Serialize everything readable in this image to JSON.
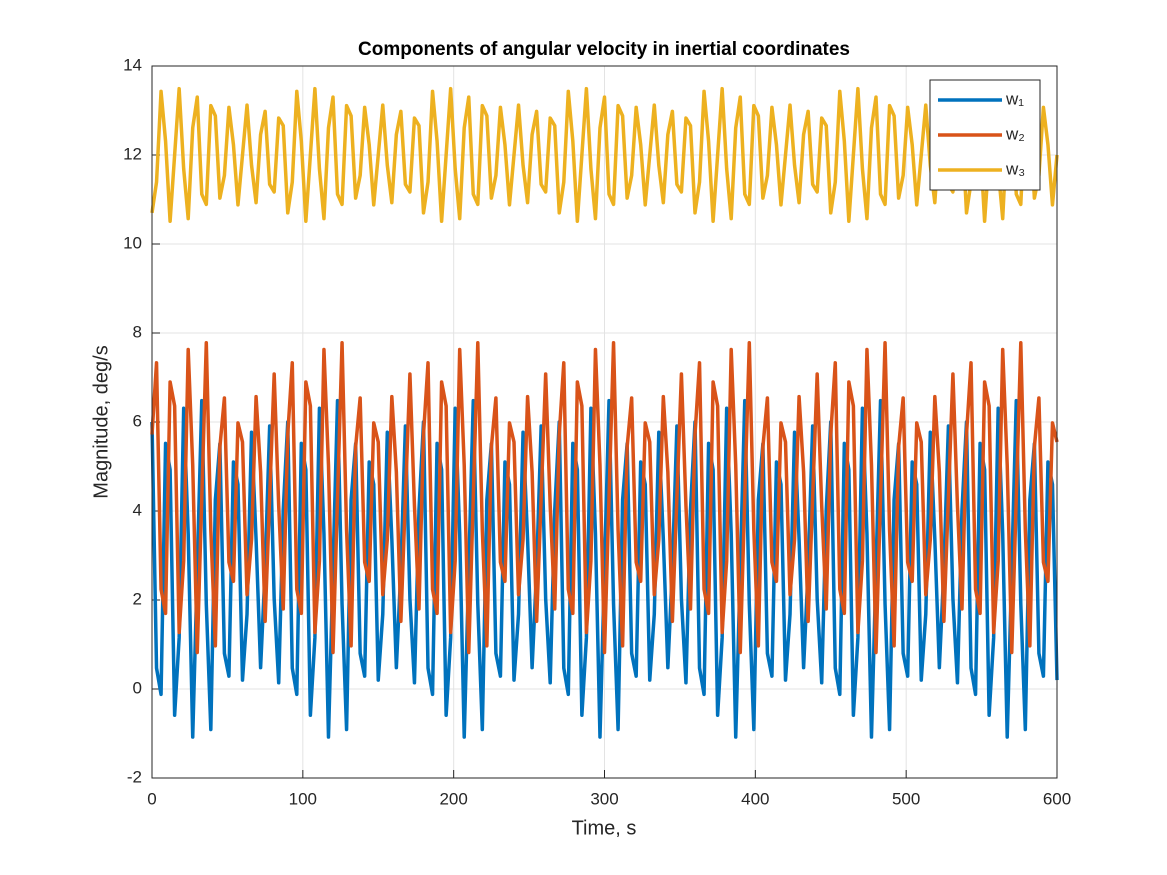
{
  "chart_data": {
    "type": "line",
    "title": "Components of angular velocity in inertial coordinates",
    "x_label": "Time, s",
    "y_label": "Magnitude, deg/s",
    "xlim": [
      0,
      600
    ],
    "xticks": [
      0,
      100,
      200,
      300,
      400,
      500,
      600
    ],
    "ylim": [
      -2,
      14
    ],
    "yticks": [
      -2,
      0,
      2,
      4,
      6,
      8,
      10,
      12,
      14
    ],
    "grid": true,
    "legend": "top-right",
    "x": [
      0,
      3,
      6,
      9,
      12,
      15,
      18,
      21,
      24,
      27,
      30,
      33,
      36,
      39,
      42,
      45,
      48,
      51,
      54,
      57,
      60,
      63,
      66,
      69,
      72,
      75,
      78,
      81,
      84,
      87,
      90,
      93,
      96,
      99,
      102,
      105,
      108,
      111,
      114,
      117,
      120,
      123,
      126,
      129,
      132,
      135,
      138,
      141,
      144,
      147,
      150,
      153,
      156,
      159,
      162,
      165,
      168,
      171,
      174,
      177,
      180,
      183,
      186,
      189,
      192,
      195,
      198,
      201,
      204,
      207,
      210,
      213,
      216,
      219,
      222,
      225,
      228,
      231,
      234,
      237,
      240,
      243,
      246,
      249,
      252,
      255,
      258,
      261,
      264,
      267,
      270,
      273,
      276,
      279,
      282,
      285,
      288,
      291,
      294,
      297,
      300,
      303,
      306,
      309,
      312,
      315,
      318,
      321,
      324,
      327,
      330,
      333,
      336,
      339,
      342,
      345,
      348,
      351,
      354,
      357,
      360,
      363,
      366,
      369,
      372,
      375,
      378,
      381,
      384,
      387,
      390,
      393,
      396,
      399,
      402,
      405,
      408,
      411,
      414,
      417,
      420,
      423,
      426,
      429,
      432,
      435,
      438,
      441,
      444,
      447,
      450,
      453,
      456,
      459,
      462,
      465,
      468,
      471,
      474,
      477,
      480,
      483,
      486,
      489,
      492,
      495,
      498,
      501,
      504,
      507,
      510,
      513,
      516,
      519,
      522,
      525,
      528,
      531,
      534,
      537,
      540,
      543,
      546,
      549,
      552,
      555,
      558,
      561,
      564,
      567,
      570,
      573,
      576,
      579,
      582,
      585,
      588,
      591,
      594,
      597,
      600
    ],
    "series": [
      {
        "name": "w₁",
        "color": "#0072BD",
        "values": [
          6,
          0.47,
          -0.12,
          5.52,
          4.93,
          -0.59,
          1.15,
          6.31,
          3.49,
          -1.08,
          2.7,
          6.48,
          1.91,
          -0.91,
          4.25,
          5.51,
          0.8,
          0.29,
          5.1,
          4.6,
          0.2,
          1.68,
          5.77,
          3.37,
          0.48,
          2.7,
          5.91,
          2.03,
          0.14,
          4.02,
          6,
          0.47,
          -0.12,
          5.52,
          4.93,
          -0.59,
          1.15,
          6.31,
          3.49,
          -1.08,
          2.7,
          6.48,
          1.91,
          -0.91,
          4.25,
          5.51,
          0.8,
          0.29,
          5.1,
          4.6,
          0.2,
          1.68,
          5.77,
          3.37,
          0.48,
          2.7,
          5.91,
          2.03,
          0.14,
          4.02,
          6,
          0.47,
          -0.12,
          5.52,
          4.93,
          -0.59,
          1.15,
          6.31,
          3.49,
          -1.08,
          2.7,
          6.48,
          1.91,
          -0.91,
          4.25,
          5.51,
          0.8,
          0.29,
          5.1,
          4.6,
          0.2,
          1.68,
          5.77,
          3.37,
          0.48,
          2.7,
          5.91,
          2.03,
          0.14,
          4.02,
          6,
          0.47,
          -0.12,
          5.52,
          4.93,
          -0.59,
          1.15,
          6.31,
          3.49,
          -1.08,
          2.7,
          6.48,
          1.91,
          -0.91,
          4.25,
          5.51,
          0.8,
          0.29,
          5.1,
          4.6,
          0.2,
          1.68,
          5.77,
          3.37,
          0.48,
          2.7,
          5.91,
          2.03,
          0.14,
          4.02,
          6,
          0.47,
          -0.12,
          5.52,
          4.93,
          -0.59,
          1.15,
          6.31,
          3.49,
          -1.08,
          2.7,
          6.48,
          1.91,
          -0.91,
          4.25,
          5.51,
          0.8,
          0.29,
          5.1,
          4.6,
          0.2,
          1.68,
          5.77,
          3.37,
          0.48,
          2.7,
          5.91,
          2.03,
          0.14,
          4.02,
          6,
          0.47,
          -0.12,
          5.52,
          4.93,
          -0.59,
          1.15,
          6.31,
          3.49,
          -1.08,
          2.7,
          6.48,
          1.91,
          -0.91,
          4.25,
          5.51,
          0.8,
          0.29,
          5.1,
          4.6,
          0.2,
          1.68,
          5.77,
          3.37,
          0.48,
          2.7,
          5.91,
          2.03,
          0.14,
          4.02,
          6,
          0.47,
          -0.12,
          5.52,
          4.93,
          -0.59,
          1.15,
          6.31,
          3.49,
          -1.08,
          2.7,
          6.48,
          1.91,
          -0.91,
          4.25,
          5.51,
          0.8,
          0.29,
          5.1,
          4.6,
          0.2
        ]
      },
      {
        "name": "w₂",
        "color": "#D95319",
        "values": [
          5.72,
          7.33,
          2.24,
          1.7,
          6.9,
          6.36,
          1.27,
          2.88,
          7.63,
          5.03,
          0.82,
          4.3,
          7.78,
          3.57,
          0.97,
          5.44,
          6.54,
          2.85,
          2.42,
          5.98,
          5.55,
          2.12,
          3.36,
          6.57,
          4.88,
          1.52,
          4.3,
          7.08,
          4.12,
          1.8,
          5.72,
          7.33,
          2.24,
          1.7,
          6.9,
          6.36,
          1.27,
          2.88,
          7.63,
          5.03,
          0.82,
          4.3,
          7.78,
          3.57,
          0.97,
          5.44,
          6.54,
          2.85,
          2.42,
          5.98,
          5.55,
          2.12,
          3.36,
          6.57,
          4.88,
          1.52,
          4.3,
          7.08,
          4.12,
          1.8,
          5.72,
          7.33,
          2.24,
          1.7,
          6.9,
          6.36,
          1.27,
          2.88,
          7.63,
          5.03,
          0.82,
          4.3,
          7.78,
          3.57,
          0.97,
          5.44,
          6.54,
          2.85,
          2.42,
          5.98,
          5.55,
          2.12,
          3.36,
          6.57,
          4.88,
          1.52,
          4.3,
          7.08,
          4.12,
          1.8,
          5.72,
          7.33,
          2.24,
          1.7,
          6.9,
          6.36,
          1.27,
          2.88,
          7.63,
          5.03,
          0.82,
          4.3,
          7.78,
          3.57,
          0.97,
          5.44,
          6.54,
          2.85,
          2.42,
          5.98,
          5.55,
          2.12,
          3.36,
          6.57,
          4.88,
          1.52,
          4.3,
          7.08,
          4.12,
          1.8,
          5.72,
          7.33,
          2.24,
          1.7,
          6.9,
          6.36,
          1.27,
          2.88,
          7.63,
          5.03,
          0.82,
          4.3,
          7.78,
          3.57,
          0.97,
          5.44,
          6.54,
          2.85,
          2.42,
          5.98,
          5.55,
          2.12,
          3.36,
          6.57,
          4.88,
          1.52,
          4.3,
          7.08,
          4.12,
          1.8,
          5.72,
          7.33,
          2.24,
          1.7,
          6.9,
          6.36,
          1.27,
          2.88,
          7.63,
          5.03,
          0.82,
          4.3,
          7.78,
          3.57,
          0.97,
          5.44,
          6.54,
          2.85,
          2.42,
          5.98,
          5.55,
          2.12,
          3.36,
          6.57,
          4.88,
          1.52,
          4.3,
          7.08,
          4.12,
          1.8,
          5.72,
          7.33,
          2.24,
          1.7,
          6.9,
          6.36,
          1.27,
          2.88,
          7.63,
          5.03,
          0.82,
          4.3,
          7.78,
          3.57,
          0.97,
          5.44,
          6.54,
          2.85,
          2.42,
          5.98,
          5.55
        ]
      },
      {
        "name": "w₃",
        "color": "#EDB120",
        "values": [
          10.7,
          11.39,
          13.43,
          12.31,
          10.51,
          12,
          13.49,
          11.69,
          10.57,
          12.61,
          13.3,
          11.12,
          10.89,
          13.11,
          12.88,
          11.03,
          11.54,
          13.07,
          12.23,
          10.88,
          12,
          13.12,
          11.77,
          10.93,
          12.46,
          12.98,
          11.34,
          11.17,
          12.83,
          12.66,
          10.7,
          11.39,
          13.43,
          12.31,
          10.51,
          12,
          13.49,
          11.69,
          10.57,
          12.61,
          13.3,
          11.12,
          10.89,
          13.11,
          12.88,
          11.03,
          11.54,
          13.07,
          12.23,
          10.88,
          12,
          13.12,
          11.77,
          10.93,
          12.46,
          12.98,
          11.34,
          11.17,
          12.83,
          12.66,
          10.7,
          11.39,
          13.43,
          12.31,
          10.51,
          12,
          13.49,
          11.69,
          10.57,
          12.61,
          13.3,
          11.12,
          10.89,
          13.11,
          12.88,
          11.03,
          11.54,
          13.07,
          12.23,
          10.88,
          12,
          13.12,
          11.77,
          10.93,
          12.46,
          12.98,
          11.34,
          11.17,
          12.83,
          12.66,
          10.7,
          11.39,
          13.43,
          12.31,
          10.51,
          12,
          13.49,
          11.69,
          10.57,
          12.61,
          13.3,
          11.12,
          10.89,
          13.11,
          12.88,
          11.03,
          11.54,
          13.07,
          12.23,
          10.88,
          12,
          13.12,
          11.77,
          10.93,
          12.46,
          12.98,
          11.34,
          11.17,
          12.83,
          12.66,
          10.7,
          11.39,
          13.43,
          12.31,
          10.51,
          12,
          13.49,
          11.69,
          10.57,
          12.61,
          13.3,
          11.12,
          10.89,
          13.11,
          12.88,
          11.03,
          11.54,
          13.07,
          12.23,
          10.88,
          12,
          13.12,
          11.77,
          10.93,
          12.46,
          12.98,
          11.34,
          11.17,
          12.83,
          12.66,
          10.7,
          11.39,
          13.43,
          12.31,
          10.51,
          12,
          13.49,
          11.69,
          10.57,
          12.61,
          13.3,
          11.12,
          10.89,
          13.11,
          12.88,
          11.03,
          11.54,
          13.07,
          12.23,
          10.88,
          12,
          13.12,
          11.77,
          10.93,
          12.46,
          12.98,
          11.34,
          11.17,
          12.83,
          12.66,
          10.7,
          11.39,
          13.43,
          12.31,
          10.51,
          12,
          13.49,
          11.69,
          10.57,
          12.61,
          13.3,
          11.12,
          10.89,
          13.11,
          12.88,
          11.03,
          11.54,
          13.07,
          12.23,
          10.88,
          12
        ]
      }
    ]
  }
}
